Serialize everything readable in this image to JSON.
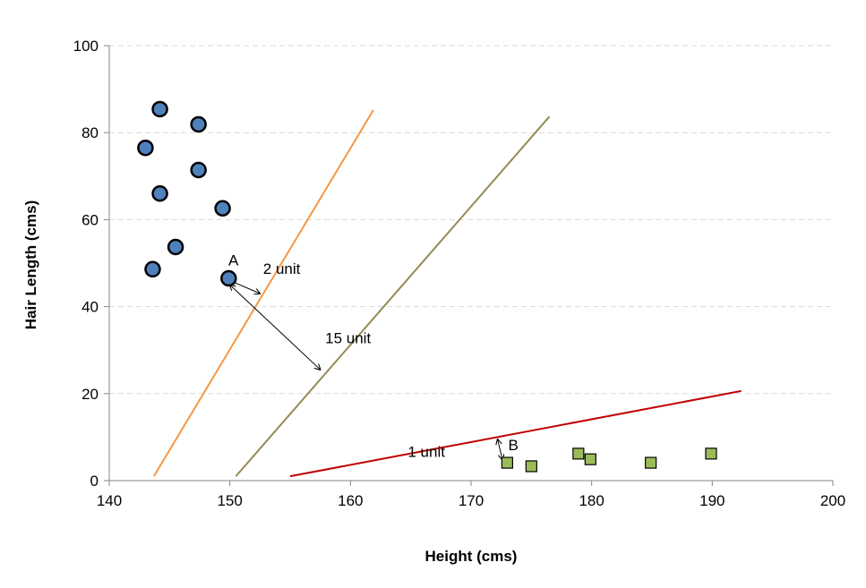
{
  "chart_data": {
    "type": "scatter",
    "title": "",
    "xlabel": "Height (cms)",
    "ylabel": "Hair Length (cms)",
    "xlim": [
      140,
      200
    ],
    "ylim": [
      0,
      100
    ],
    "xticks": [
      "140",
      "150",
      "160",
      "170",
      "180",
      "190",
      "200"
    ],
    "yticks": [
      "0",
      "20",
      "40",
      "60",
      "80",
      "100"
    ],
    "grid": "horizontal dashed",
    "series": [
      {
        "name": "circles",
        "marker": "circle",
        "color": "#4f81bd",
        "points": [
          [
            144.2,
            85.4
          ],
          [
            147.4,
            81.9
          ],
          [
            143.0,
            76.5
          ],
          [
            147.4,
            71.4
          ],
          [
            144.2,
            66.0
          ],
          [
            149.4,
            62.6
          ],
          [
            145.5,
            53.7
          ],
          [
            143.6,
            48.6
          ],
          [
            149.9,
            46.5
          ]
        ]
      },
      {
        "name": "squares",
        "marker": "square",
        "color": "#9bbb59",
        "points": [
          [
            173.0,
            4.1
          ],
          [
            175.0,
            3.3
          ],
          [
            178.9,
            6.2
          ],
          [
            179.9,
            4.9
          ],
          [
            184.9,
            4.1
          ],
          [
            189.9,
            6.2
          ]
        ]
      }
    ],
    "lines": [
      {
        "name": "orange-line",
        "color": "#f79646",
        "from": [
          143.7,
          1.0
        ],
        "to": [
          161.9,
          85.2
        ]
      },
      {
        "name": "olive-line",
        "color": "#948a54",
        "from": [
          150.5,
          1.0
        ],
        "to": [
          176.5,
          83.7
        ]
      },
      {
        "name": "red-line",
        "color": "#c00000",
        "from": [
          155.0,
          1.0
        ],
        "to": [
          192.4,
          20.6
        ]
      }
    ],
    "arrows": [
      {
        "name": "arrow-2-unit",
        "from": [
          150.0,
          46.0
        ],
        "to": [
          152.5,
          43.0
        ]
      },
      {
        "name": "arrow-15-unit",
        "from": [
          150.0,
          45.0
        ],
        "to": [
          157.5,
          25.5
        ]
      },
      {
        "name": "arrow-1-unit",
        "from": [
          172.2,
          9.5
        ],
        "to": [
          172.6,
          4.8
        ]
      }
    ],
    "annotations": [
      {
        "text": "A",
        "x": 150.3,
        "y": 49.5
      },
      {
        "text": "2 unit",
        "x": 154.3,
        "y": 47.5
      },
      {
        "text": "15 unit",
        "x": 159.8,
        "y": 31.6
      },
      {
        "text": "1 unit",
        "x": 166.3,
        "y": 5.5
      },
      {
        "text": "B",
        "x": 173.5,
        "y": 7.0
      }
    ]
  }
}
